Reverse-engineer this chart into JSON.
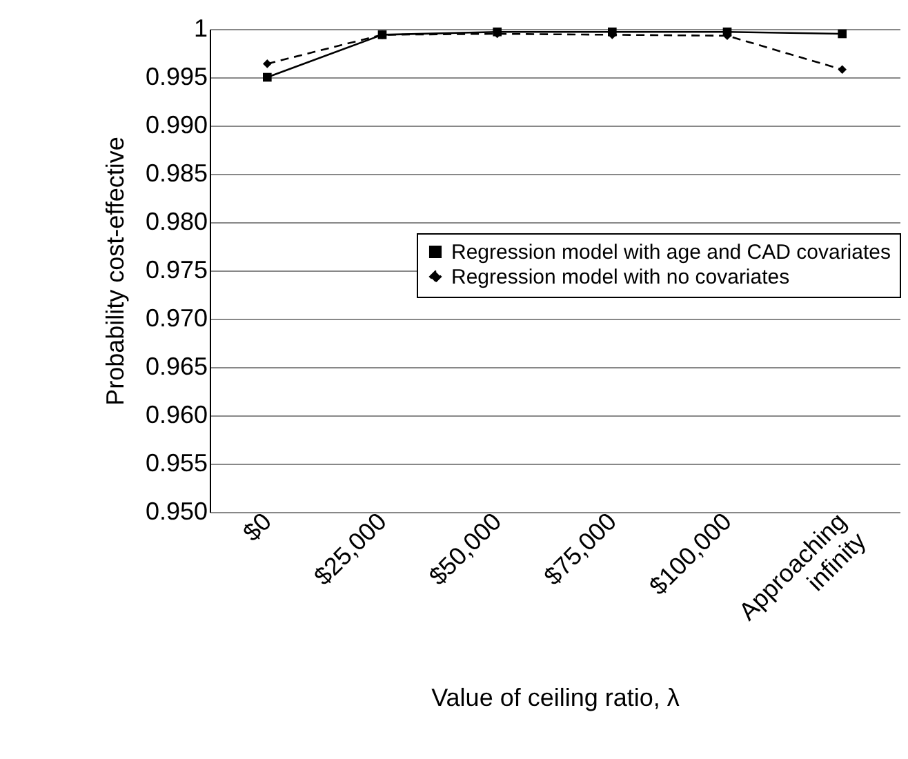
{
  "chart_data": {
    "type": "line",
    "xlabel": "Value of ceiling ratio, λ",
    "ylabel": "Probability cost-effective",
    "categories": [
      "$0",
      "$25,000",
      "$50,000",
      "$75,000",
      "$100,000",
      "Approaching infinity"
    ],
    "series": [
      {
        "name": "Regression model with age and CAD covariates",
        "color": "#000000",
        "line_style": "solid",
        "marker": "square",
        "values": [
          0.995,
          0.9994,
          0.9997,
          0.9997,
          0.9997,
          0.9995
        ]
      },
      {
        "name": "Regression model with no covariates",
        "color": "#000000",
        "line_style": "dashed",
        "marker": "diamond",
        "values": [
          0.9964,
          0.9994,
          0.9995,
          0.9994,
          0.9993,
          0.9958
        ]
      }
    ],
    "ylim": [
      0.95,
      1
    ],
    "yticks": [
      {
        "value": 0.95,
        "label": "0.950"
      },
      {
        "value": 0.955,
        "label": "0.955"
      },
      {
        "value": 0.96,
        "label": "0.960"
      },
      {
        "value": 0.965,
        "label": "0.965"
      },
      {
        "value": 0.97,
        "label": "0.970"
      },
      {
        "value": 0.975,
        "label": "0.975"
      },
      {
        "value": 0.98,
        "label": "0.980"
      },
      {
        "value": 0.985,
        "label": "0.985"
      },
      {
        "value": 0.99,
        "label": "0.990"
      },
      {
        "value": 0.995,
        "label": "0.995"
      },
      1
    ],
    "grid": "y",
    "legend": "right"
  }
}
